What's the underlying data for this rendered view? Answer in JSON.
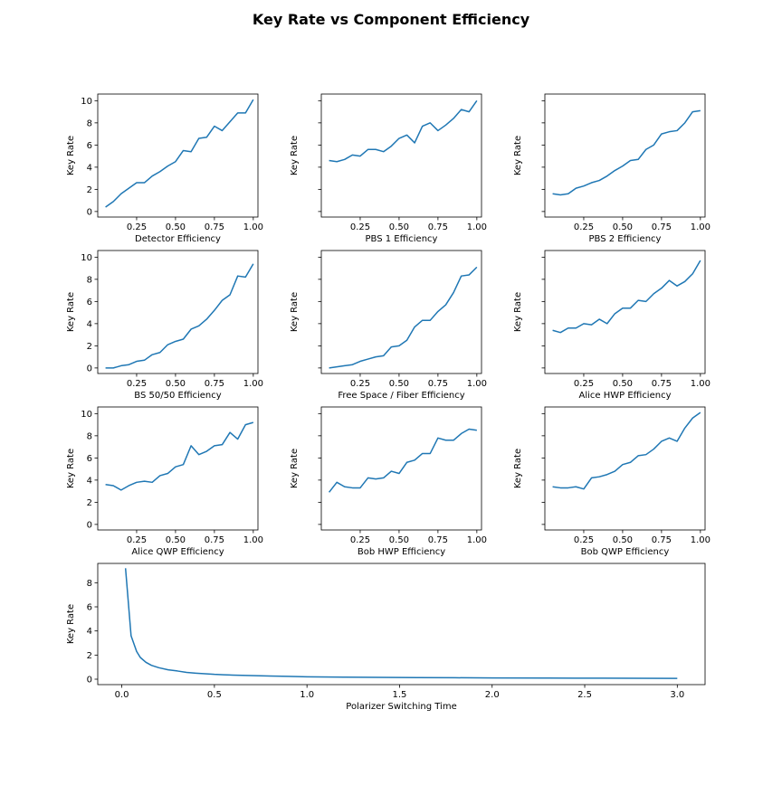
{
  "figure": {
    "title": "Key Rate vs Component Efficiency"
  },
  "chart_data": [
    {
      "type": "line",
      "xlabel": "Detector Efficiency",
      "ylabel": "Key Rate",
      "xlim": [
        0.0,
        1.03
      ],
      "ylim": [
        -0.5,
        10.6
      ],
      "xticks": [
        0.25,
        0.5,
        0.75,
        1.0
      ],
      "yticks": [
        0,
        2,
        4,
        6,
        8,
        10
      ],
      "show_ytick_labels": true,
      "series": [
        {
          "color": "#1f77b4",
          "x": [
            0.05,
            0.1,
            0.15,
            0.2,
            0.25,
            0.3,
            0.35,
            0.4,
            0.45,
            0.5,
            0.55,
            0.6,
            0.65,
            0.7,
            0.75,
            0.8,
            0.85,
            0.9,
            0.95,
            1.0
          ],
          "y": [
            0.4,
            0.9,
            1.6,
            2.1,
            2.6,
            2.6,
            3.2,
            3.6,
            4.1,
            4.5,
            5.5,
            5.4,
            6.6,
            6.7,
            7.7,
            7.3,
            8.1,
            8.9,
            8.9,
            10.1
          ]
        }
      ]
    },
    {
      "type": "line",
      "xlabel": "PBS 1 Efficiency",
      "ylabel": "Key Rate",
      "xlim": [
        0.0,
        1.03
      ],
      "ylim": [
        -0.5,
        10.6
      ],
      "xticks": [
        0.25,
        0.5,
        0.75,
        1.0
      ],
      "yticks": [
        0,
        2,
        4,
        6,
        8,
        10
      ],
      "show_ytick_labels": false,
      "series": [
        {
          "color": "#1f77b4",
          "x": [
            0.05,
            0.1,
            0.15,
            0.2,
            0.25,
            0.3,
            0.35,
            0.4,
            0.45,
            0.5,
            0.55,
            0.6,
            0.65,
            0.7,
            0.75,
            0.8,
            0.85,
            0.9,
            0.95,
            1.0
          ],
          "y": [
            4.6,
            4.5,
            4.7,
            5.1,
            5.0,
            5.6,
            5.6,
            5.4,
            5.9,
            6.6,
            6.9,
            6.2,
            7.7,
            8.0,
            7.3,
            7.8,
            8.4,
            9.2,
            9.0,
            10.0
          ]
        }
      ]
    },
    {
      "type": "line",
      "xlabel": "PBS 2 Efficiency",
      "ylabel": "Key Rate",
      "xlim": [
        0.0,
        1.03
      ],
      "ylim": [
        -0.5,
        10.6
      ],
      "xticks": [
        0.25,
        0.5,
        0.75,
        1.0
      ],
      "yticks": [
        0,
        2,
        4,
        6,
        8,
        10
      ],
      "show_ytick_labels": false,
      "series": [
        {
          "color": "#1f77b4",
          "x": [
            0.05,
            0.1,
            0.15,
            0.2,
            0.25,
            0.3,
            0.35,
            0.4,
            0.45,
            0.5,
            0.55,
            0.6,
            0.65,
            0.7,
            0.75,
            0.8,
            0.85,
            0.9,
            0.95,
            1.0
          ],
          "y": [
            1.6,
            1.5,
            1.6,
            2.1,
            2.3,
            2.6,
            2.8,
            3.2,
            3.7,
            4.1,
            4.6,
            4.7,
            5.6,
            6.0,
            7.0,
            7.2,
            7.3,
            8.0,
            9.0,
            9.1
          ]
        }
      ]
    },
    {
      "type": "line",
      "xlabel": "BS 50/50 Efficiency",
      "ylabel": "Key Rate",
      "xlim": [
        0.0,
        1.03
      ],
      "ylim": [
        -0.5,
        10.6
      ],
      "xticks": [
        0.25,
        0.5,
        0.75,
        1.0
      ],
      "yticks": [
        0,
        2,
        4,
        6,
        8,
        10
      ],
      "show_ytick_labels": true,
      "series": [
        {
          "color": "#1f77b4",
          "x": [
            0.05,
            0.1,
            0.15,
            0.2,
            0.25,
            0.3,
            0.35,
            0.4,
            0.45,
            0.5,
            0.55,
            0.6,
            0.65,
            0.7,
            0.75,
            0.8,
            0.85,
            0.9,
            0.95,
            1.0
          ],
          "y": [
            0.0,
            0.0,
            0.2,
            0.3,
            0.6,
            0.7,
            1.2,
            1.4,
            2.1,
            2.4,
            2.6,
            3.5,
            3.8,
            4.4,
            5.2,
            6.1,
            6.6,
            8.3,
            8.2,
            9.4
          ]
        }
      ]
    },
    {
      "type": "line",
      "xlabel": "Free Space / Fiber Efficiency",
      "ylabel": "Key Rate",
      "xlim": [
        0.0,
        1.03
      ],
      "ylim": [
        -0.5,
        10.6
      ],
      "xticks": [
        0.25,
        0.5,
        0.75,
        1.0
      ],
      "yticks": [
        0,
        2,
        4,
        6,
        8,
        10
      ],
      "show_ytick_labels": false,
      "series": [
        {
          "color": "#1f77b4",
          "x": [
            0.05,
            0.1,
            0.15,
            0.2,
            0.25,
            0.3,
            0.35,
            0.4,
            0.45,
            0.5,
            0.55,
            0.6,
            0.65,
            0.7,
            0.75,
            0.8,
            0.85,
            0.9,
            0.95,
            1.0
          ],
          "y": [
            0.0,
            0.1,
            0.2,
            0.3,
            0.6,
            0.8,
            1.0,
            1.1,
            1.9,
            2.0,
            2.5,
            3.7,
            4.3,
            4.3,
            5.1,
            5.7,
            6.8,
            8.3,
            8.4,
            9.1
          ]
        }
      ]
    },
    {
      "type": "line",
      "xlabel": "Alice HWP Efficiency",
      "ylabel": "Key Rate",
      "xlim": [
        0.0,
        1.03
      ],
      "ylim": [
        -0.5,
        10.6
      ],
      "xticks": [
        0.25,
        0.5,
        0.75,
        1.0
      ],
      "yticks": [
        0,
        2,
        4,
        6,
        8,
        10
      ],
      "show_ytick_labels": false,
      "series": [
        {
          "color": "#1f77b4",
          "x": [
            0.05,
            0.1,
            0.15,
            0.2,
            0.25,
            0.3,
            0.35,
            0.4,
            0.45,
            0.5,
            0.55,
            0.6,
            0.65,
            0.7,
            0.75,
            0.8,
            0.85,
            0.9,
            0.95,
            1.0
          ],
          "y": [
            3.4,
            3.2,
            3.6,
            3.6,
            4.0,
            3.9,
            4.4,
            4.0,
            4.9,
            5.4,
            5.4,
            6.1,
            6.0,
            6.7,
            7.2,
            7.9,
            7.4,
            7.8,
            8.5,
            9.7
          ]
        }
      ]
    },
    {
      "type": "line",
      "xlabel": "Alice QWP Efficiency",
      "ylabel": "Key Rate",
      "xlim": [
        0.0,
        1.03
      ],
      "ylim": [
        -0.5,
        10.6
      ],
      "xticks": [
        0.25,
        0.5,
        0.75,
        1.0
      ],
      "yticks": [
        0,
        2,
        4,
        6,
        8,
        10
      ],
      "show_ytick_labels": true,
      "series": [
        {
          "color": "#1f77b4",
          "x": [
            0.05,
            0.1,
            0.15,
            0.2,
            0.25,
            0.3,
            0.35,
            0.4,
            0.45,
            0.5,
            0.55,
            0.6,
            0.65,
            0.7,
            0.75,
            0.8,
            0.85,
            0.9,
            0.95,
            1.0
          ],
          "y": [
            3.6,
            3.5,
            3.1,
            3.5,
            3.8,
            3.9,
            3.8,
            4.4,
            4.6,
            5.2,
            5.4,
            7.1,
            6.3,
            6.6,
            7.1,
            7.2,
            8.3,
            7.7,
            9.0,
            9.2
          ]
        }
      ]
    },
    {
      "type": "line",
      "xlabel": "Bob HWP Efficiency",
      "ylabel": "Key Rate",
      "xlim": [
        0.0,
        1.03
      ],
      "ylim": [
        -0.5,
        10.6
      ],
      "xticks": [
        0.25,
        0.5,
        0.75,
        1.0
      ],
      "yticks": [
        0,
        2,
        4,
        6,
        8,
        10
      ],
      "show_ytick_labels": false,
      "series": [
        {
          "color": "#1f77b4",
          "x": [
            0.05,
            0.1,
            0.15,
            0.2,
            0.25,
            0.3,
            0.35,
            0.4,
            0.45,
            0.5,
            0.55,
            0.6,
            0.65,
            0.7,
            0.75,
            0.8,
            0.85,
            0.9,
            0.95,
            1.0
          ],
          "y": [
            2.9,
            3.8,
            3.4,
            3.3,
            3.3,
            4.2,
            4.1,
            4.2,
            4.8,
            4.6,
            5.6,
            5.8,
            6.4,
            6.4,
            7.8,
            7.6,
            7.6,
            8.2,
            8.6,
            8.5
          ]
        }
      ]
    },
    {
      "type": "line",
      "xlabel": "Bob QWP Efficiency",
      "ylabel": "Key Rate",
      "xlim": [
        0.0,
        1.03
      ],
      "ylim": [
        -0.5,
        10.6
      ],
      "xticks": [
        0.25,
        0.5,
        0.75,
        1.0
      ],
      "yticks": [
        0,
        2,
        4,
        6,
        8,
        10
      ],
      "show_ytick_labels": false,
      "series": [
        {
          "color": "#1f77b4",
          "x": [
            0.05,
            0.1,
            0.15,
            0.2,
            0.25,
            0.3,
            0.35,
            0.4,
            0.45,
            0.5,
            0.55,
            0.6,
            0.65,
            0.7,
            0.75,
            0.8,
            0.85,
            0.9,
            0.95,
            1.0
          ],
          "y": [
            3.4,
            3.3,
            3.3,
            3.4,
            3.2,
            4.2,
            4.3,
            4.5,
            4.8,
            5.4,
            5.6,
            6.2,
            6.3,
            6.8,
            7.5,
            7.8,
            7.5,
            8.7,
            9.6,
            10.1
          ]
        }
      ]
    },
    {
      "type": "line",
      "xlabel": "Polarizer Switching Time",
      "ylabel": "Key Rate",
      "xlim": [
        -0.13,
        3.15
      ],
      "ylim": [
        -0.45,
        9.6
      ],
      "xticks": [
        0.0,
        0.5,
        1.0,
        1.5,
        2.0,
        2.5,
        3.0
      ],
      "yticks": [
        0,
        2,
        4,
        6,
        8
      ],
      "show_ytick_labels": true,
      "series": [
        {
          "color": "#1f77b4",
          "x": [
            0.02,
            0.05,
            0.08,
            0.1,
            0.13,
            0.16,
            0.2,
            0.25,
            0.3,
            0.35,
            0.4,
            0.45,
            0.5,
            0.55,
            0.6,
            0.7,
            0.8,
            0.9,
            1.0,
            1.2,
            1.4,
            1.6,
            1.8,
            2.0,
            2.3,
            2.6,
            3.0
          ],
          "y": [
            9.2,
            3.6,
            2.3,
            1.8,
            1.4,
            1.15,
            0.95,
            0.78,
            0.68,
            0.56,
            0.5,
            0.45,
            0.4,
            0.37,
            0.34,
            0.3,
            0.26,
            0.23,
            0.2,
            0.17,
            0.15,
            0.13,
            0.12,
            0.1,
            0.09,
            0.08,
            0.07
          ]
        }
      ]
    }
  ]
}
